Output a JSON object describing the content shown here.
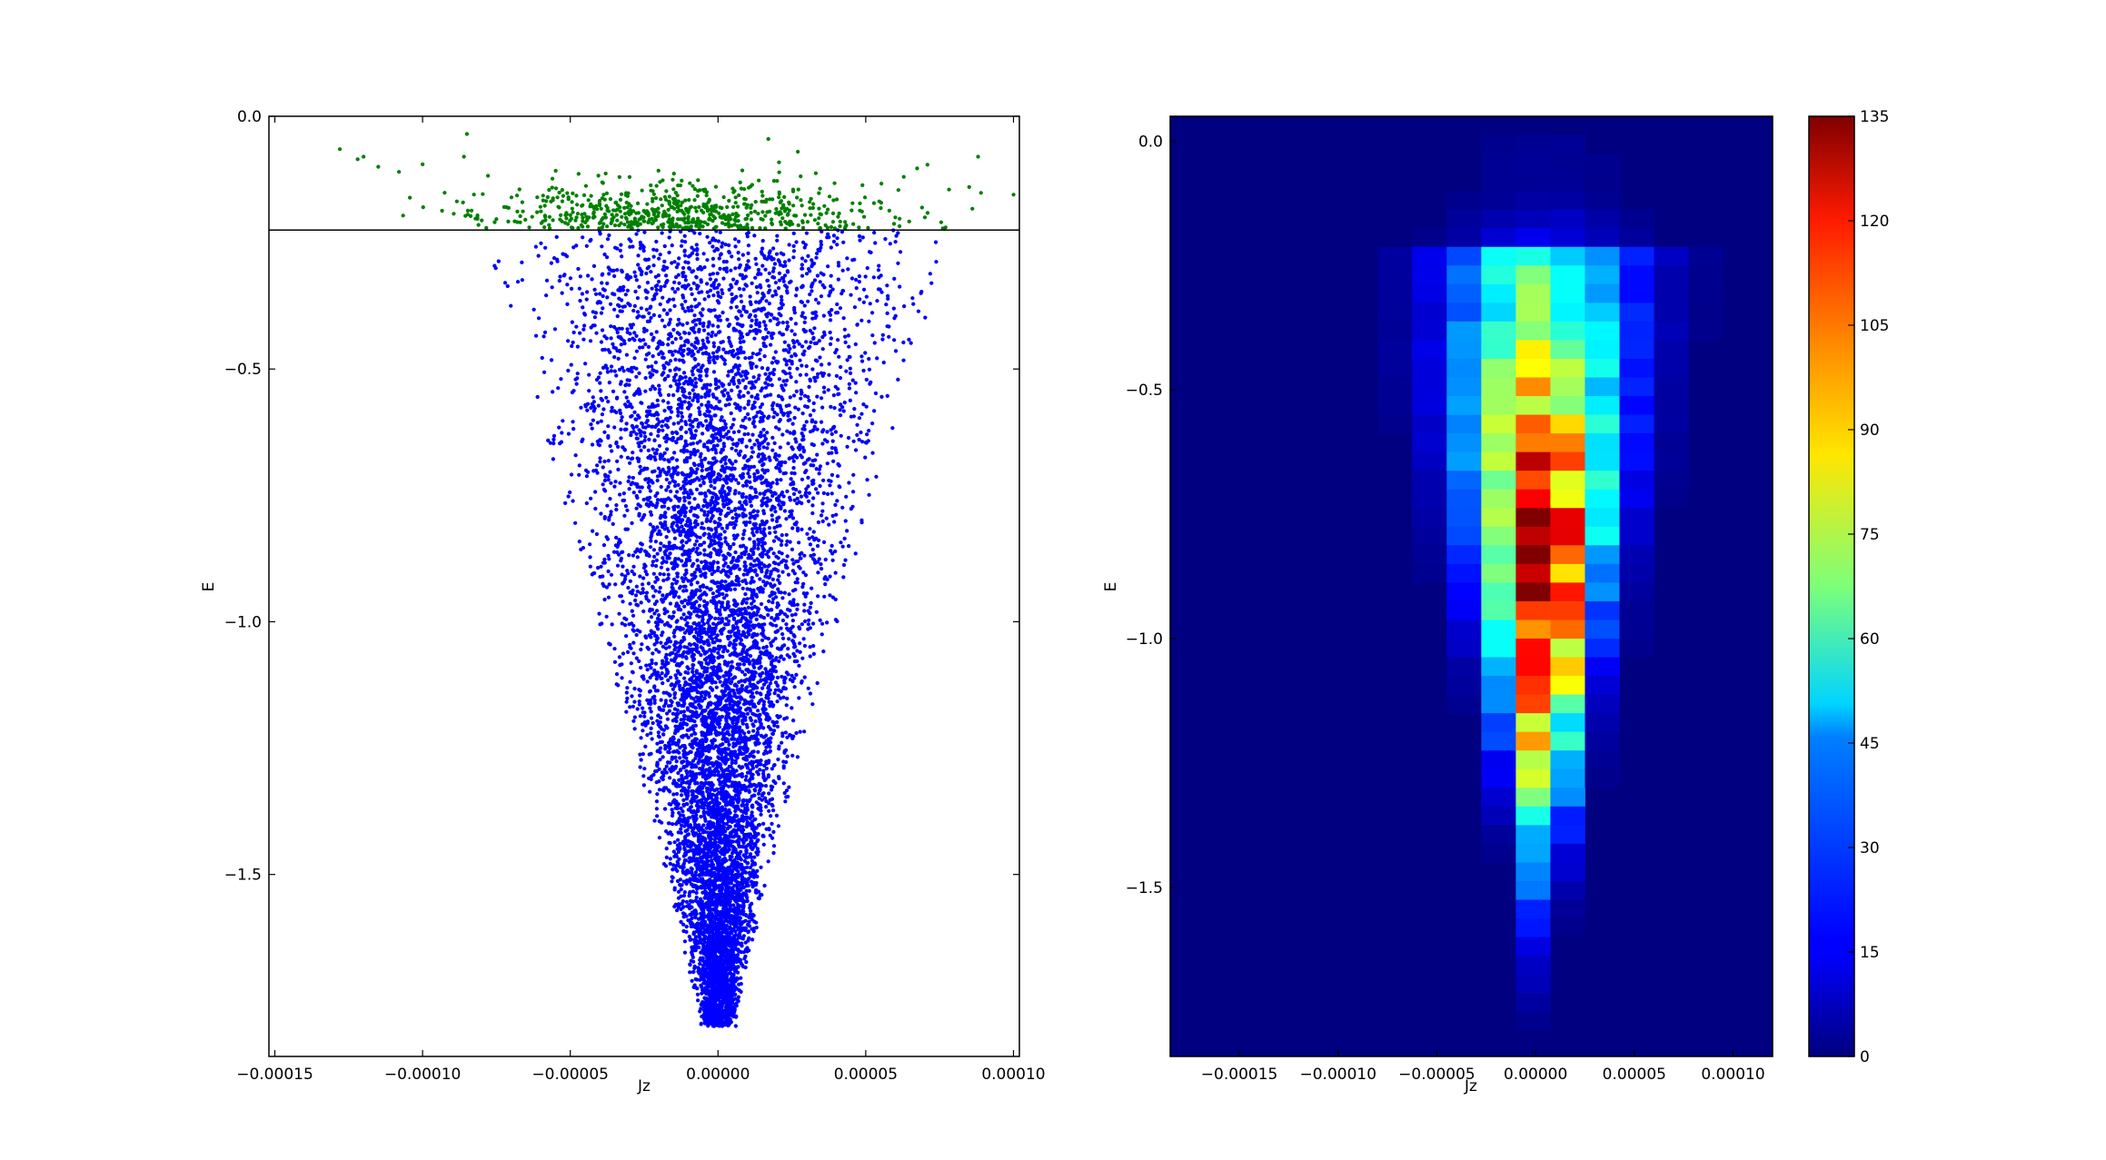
{
  "chart_data": [
    {
      "type": "scatter",
      "xlabel": "Jz",
      "ylabel": "E",
      "xlim": [
        -0.000152,
        0.000102
      ],
      "ylim": [
        -1.86,
        0.0
      ],
      "xticks": [
        -0.00015,
        -0.0001,
        -5e-05,
        0.0,
        5e-05,
        0.0001
      ],
      "xtick_labels": [
        "−0.00015",
        "−0.00010",
        "−0.00005",
        "0.00000",
        "0.00005",
        "0.00010"
      ],
      "yticks": [
        0.0,
        -0.5,
        -1.0,
        -1.5
      ],
      "ytick_labels": [
        "0.0",
        "−0.5",
        "−1.0",
        "−1.5"
      ],
      "threshold_line": {
        "y": -0.225,
        "color": "#000000"
      },
      "series": [
        {
          "color": "#008000",
          "region": "above threshold",
          "x_range": [
            -0.00013,
            0.0001
          ],
          "y_range": [
            -0.225,
            -0.03
          ]
        },
        {
          "color": "#0000ff",
          "region": "below threshold",
          "x_range": [
            -7.5e-05,
            7e-05
          ],
          "y_range": [
            -1.84,
            -0.225
          ]
        }
      ],
      "grid": false
    },
    {
      "type": "heatmap",
      "xlabel": "Jz",
      "ylabel": "E",
      "xlim": [
        -0.000185,
        0.00012
      ],
      "ylim": [
        -1.84,
        0.05
      ],
      "xticks": [
        -0.00015,
        -0.0001,
        -5e-05,
        0.0,
        5e-05,
        0.0001
      ],
      "xtick_labels": [
        "−0.00015",
        "−0.00010",
        "−0.00005",
        "0.00000",
        "0.00005",
        "0.00010"
      ],
      "yticks": [
        0.0,
        -0.5,
        -1.0,
        -1.5
      ],
      "ytick_labels": [
        "0.0",
        "−0.5",
        "−1.0",
        "−1.5"
      ],
      "x_bin_width": 1.75e-05,
      "x_bin_start": -0.000185,
      "colormap": "jet",
      "colorbar": {
        "min": 0,
        "max": 135,
        "ticks": [
          0,
          15,
          30,
          45,
          60,
          75,
          90,
          105,
          120,
          135
        ],
        "tick_labels": [
          "0",
          "15",
          "30",
          "45",
          "60",
          "75",
          "90",
          "105",
          "120",
          "135"
        ]
      },
      "grid": false
    }
  ]
}
